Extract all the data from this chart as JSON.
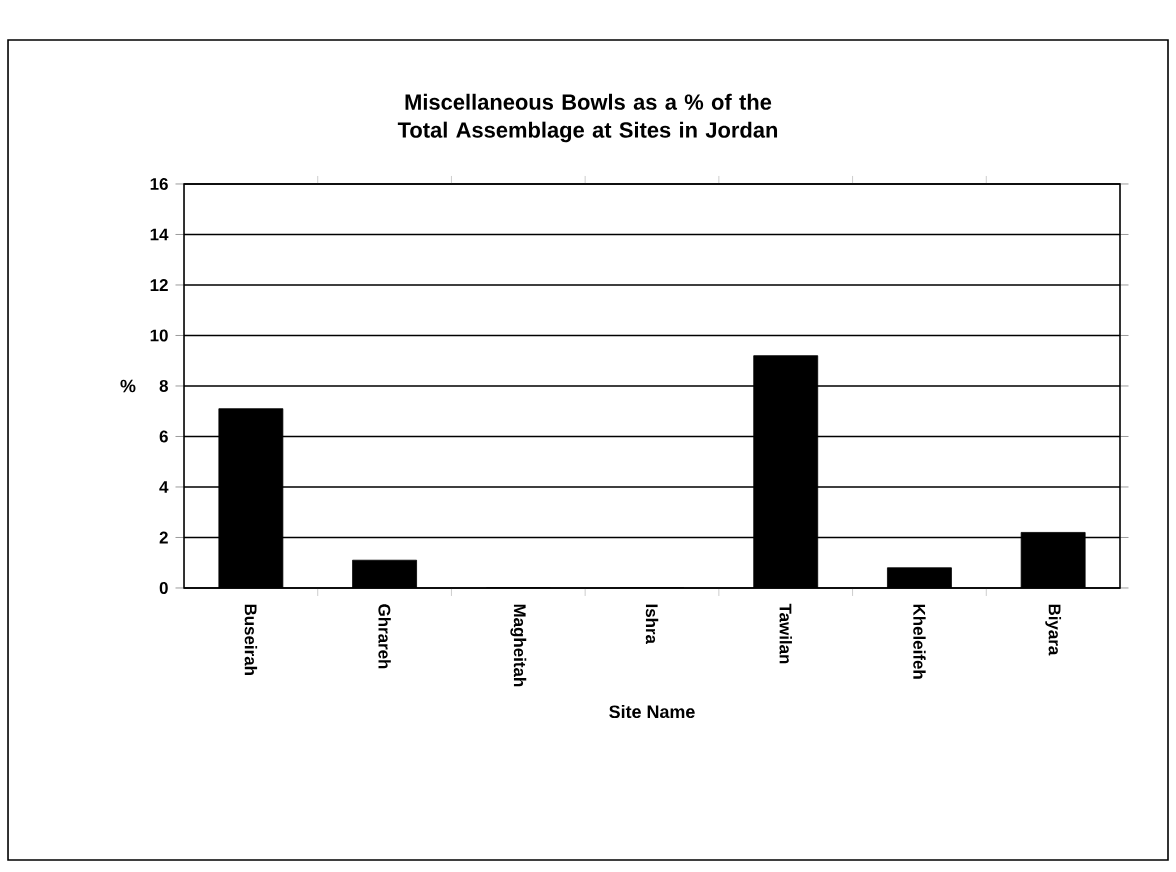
{
  "chart_data": {
    "type": "bar",
    "title": "Miscellaneous Bowls as a % of the Total Assemblage at Sites in Jordan",
    "xlabel": "Site Name",
    "ylabel": "%",
    "categories": [
      "Buseirah",
      "Ghrareh",
      "Magheitah",
      "Ishra",
      "Tawilan",
      "Kheleifeh",
      "Biyara"
    ],
    "values": [
      7.1,
      1.1,
      0,
      0,
      9.2,
      0.8,
      2.2
    ],
    "color": "#000000",
    "ylim": [
      0,
      16
    ],
    "yticks": [
      0,
      2,
      4,
      6,
      8,
      10,
      12,
      14,
      16
    ],
    "grid": "y"
  }
}
